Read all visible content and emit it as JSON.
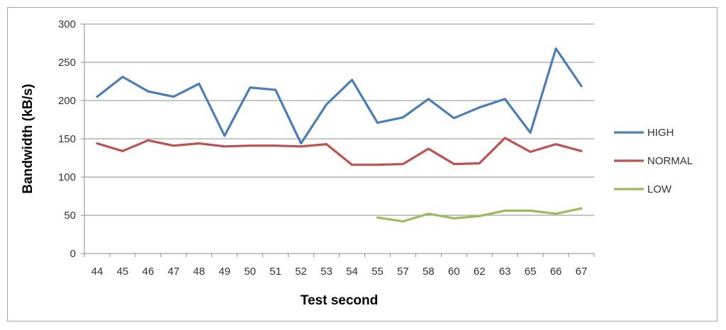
{
  "chart_data": {
    "type": "line",
    "title": "",
    "xlabel": "Test second",
    "ylabel": "Bandwidth (kB/s)",
    "ylim": [
      0,
      300
    ],
    "yticks": [
      0,
      50,
      100,
      150,
      200,
      250,
      300
    ],
    "grid": "horizontal",
    "legend_position": "right",
    "categories": [
      "44",
      "45",
      "46",
      "47",
      "48",
      "49",
      "50",
      "51",
      "52",
      "53",
      "54",
      "55",
      "57",
      "58",
      "60",
      "62",
      "63",
      "65",
      "66",
      "67"
    ],
    "series": [
      {
        "name": "HIGH",
        "color": "#4a7ebb",
        "values": [
          205,
          231,
          212,
          205,
          222,
          154,
          217,
          214,
          144,
          195,
          227,
          171,
          178,
          202,
          177,
          191,
          202,
          158,
          268,
          219
        ]
      },
      {
        "name": "NORMAL",
        "color": "#c0504d",
        "values": [
          144,
          134,
          148,
          141,
          144,
          140,
          141,
          141,
          140,
          143,
          116,
          116,
          117,
          137,
          117,
          118,
          151,
          133,
          143,
          134
        ]
      },
      {
        "name": "LOW",
        "color": "#9bbb59",
        "values": [
          null,
          null,
          null,
          null,
          null,
          null,
          null,
          null,
          null,
          null,
          null,
          47,
          42,
          52,
          46,
          49,
          56,
          56,
          52,
          59
        ]
      }
    ]
  }
}
